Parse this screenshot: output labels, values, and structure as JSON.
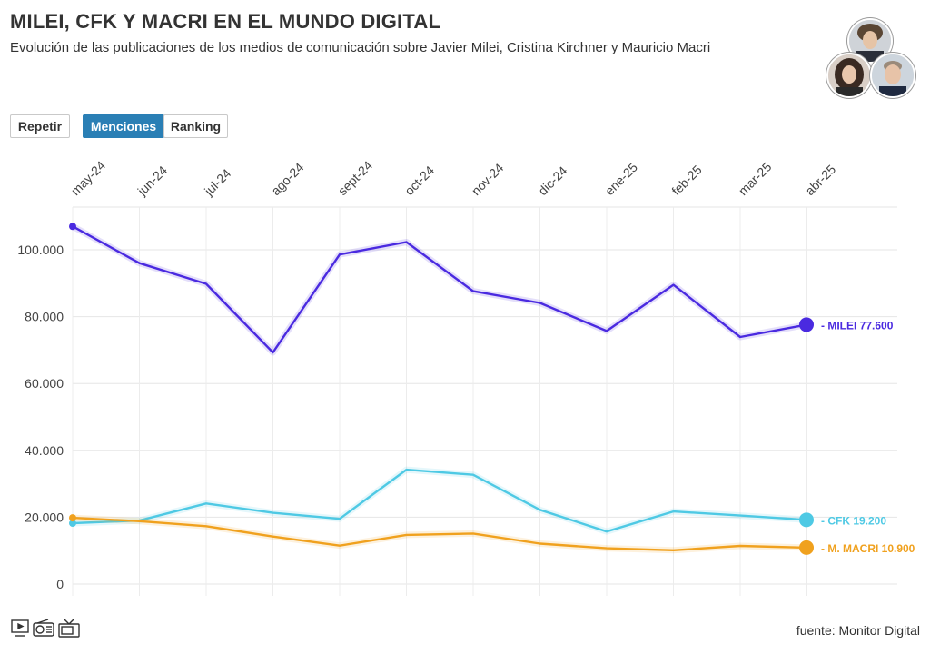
{
  "header": {
    "title": "MILEI, CFK Y MACRI EN EL MUNDO DIGITAL",
    "subtitle": "Evolución de las publicaciones de los medios de comunicación sobre Javier Milei, Cristina Kirchner y Mauricio Macri"
  },
  "controls": {
    "replay_label": "Repetir",
    "tabs": [
      {
        "label": "Menciones",
        "active": true
      },
      {
        "label": "Ranking",
        "active": false
      }
    ]
  },
  "footer": {
    "source": "fuente: Monitor Digital",
    "icons": [
      "computer-icon",
      "radio-icon",
      "tv-icon"
    ]
  },
  "portraits": [
    "milei-portrait",
    "cfk-portrait",
    "macri-portrait"
  ],
  "chart_data": {
    "type": "line",
    "categories": [
      "may-24",
      "jun-24",
      "jul-24",
      "ago-24",
      "sept-24",
      "oct-24",
      "nov-24",
      "dic-24",
      "ene-25",
      "feb-25",
      "mar-25",
      "abr-25"
    ],
    "ylim": [
      0,
      110000
    ],
    "yticks": [
      0,
      20000,
      40000,
      60000,
      80000,
      100000
    ],
    "ytick_labels": [
      "0",
      "20.000",
      "40.000",
      "60.000",
      "80.000",
      "100.000"
    ],
    "grid": true,
    "series": [
      {
        "name": "MILEI",
        "end_label": "MILEI 77.600",
        "color": "#4a2ae0",
        "values": [
          107000,
          96000,
          89800,
          69300,
          98600,
          102300,
          87600,
          84100,
          75700,
          89500,
          73900,
          77600
        ]
      },
      {
        "name": "CFK",
        "end_label": "CFK 19.200",
        "color": "#4ec9e4",
        "values": [
          18200,
          19000,
          24100,
          21300,
          19500,
          34200,
          32700,
          22200,
          15700,
          21700,
          20500,
          19200
        ]
      },
      {
        "name": "M. MACRI",
        "end_label": "M. MACRI 10.900",
        "color": "#f0a11e",
        "values": [
          19800,
          18800,
          17300,
          14200,
          11500,
          14700,
          15100,
          12100,
          10700,
          10100,
          11400,
          10900
        ]
      }
    ]
  }
}
